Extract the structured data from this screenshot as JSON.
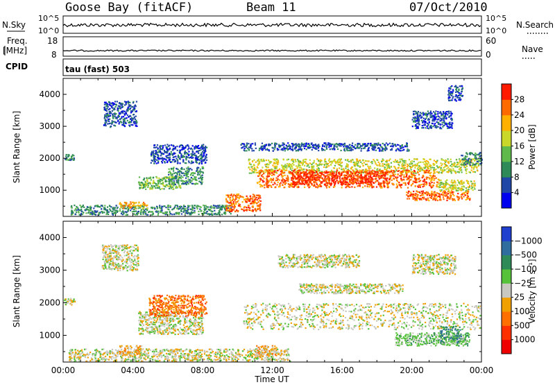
{
  "header": {
    "station": "Goose Bay (fitACF)",
    "beam": "Beam 11",
    "date": "07/Oct/2010"
  },
  "panels": {
    "nsky_label": "N.Sky",
    "nsky_ticks": [
      "10^5",
      "10^0"
    ],
    "nsearch_label": "N.Search",
    "freq_label_line1": "Freq.",
    "freq_label_line2": "[MHz]",
    "freq_ticks": [
      "18",
      "8"
    ],
    "nave_label": "Nave",
    "nave_ticks": [
      "60",
      "0"
    ],
    "cpid_label": "CPID",
    "cpid_value": "tau (fast) 503"
  },
  "chart_data": [
    {
      "type": "heatmap",
      "name": "power",
      "ylabel": "Slant Range [km]",
      "yticks": [
        1000,
        2000,
        3000,
        4000
      ],
      "ylim": [
        180,
        4500
      ],
      "xlim": [
        0,
        24
      ],
      "colorbar": {
        "label": "Power [dB]",
        "tick_labels": [
          "4",
          "8",
          "12",
          "16",
          "20",
          "24",
          "28"
        ],
        "colors": [
          "#0000ee",
          "#2147a6",
          "#2e8b57",
          "#5fb94b",
          "#c9d62a",
          "#ffb000",
          "#ff6a00",
          "#ff1a00"
        ]
      },
      "regions": [
        {
          "t0": 0.0,
          "t1": 0.6,
          "r0": 1950,
          "r1": 2150,
          "level": 2
        },
        {
          "t0": 2.3,
          "t1": 4.2,
          "r0": 3000,
          "r1": 3800,
          "level": 1
        },
        {
          "t0": 4.3,
          "t1": 6.7,
          "r0": 1050,
          "r1": 1450,
          "level": 3
        },
        {
          "t0": 6.0,
          "t1": 8.0,
          "r0": 1200,
          "r1": 1750,
          "level": 2
        },
        {
          "t0": 5.0,
          "t1": 8.2,
          "r0": 1850,
          "r1": 2450,
          "level": 1
        },
        {
          "t0": 0.4,
          "t1": 9.6,
          "r0": 250,
          "r1": 550,
          "level": 2
        },
        {
          "t0": 3.2,
          "t1": 4.8,
          "r0": 450,
          "r1": 650,
          "level": 5
        },
        {
          "t0": 9.3,
          "t1": 11.3,
          "r0": 350,
          "r1": 900,
          "level": 6
        },
        {
          "t0": 10.1,
          "t1": 19.8,
          "r0": 2250,
          "r1": 2500,
          "level": 1
        },
        {
          "t0": 10.6,
          "t1": 23.8,
          "r0": 1550,
          "r1": 2000,
          "level": 4
        },
        {
          "t0": 11.1,
          "t1": 21.5,
          "r0": 1100,
          "r1": 1650,
          "level": 6
        },
        {
          "t0": 13.0,
          "t1": 18.5,
          "r0": 1200,
          "r1": 1600,
          "level": 7
        },
        {
          "t0": 19.6,
          "t1": 23.3,
          "r0": 700,
          "r1": 1000,
          "level": 6
        },
        {
          "t0": 21.5,
          "t1": 23.6,
          "r0": 1000,
          "r1": 1350,
          "level": 4
        },
        {
          "t0": 20.0,
          "t1": 22.3,
          "r0": 2950,
          "r1": 3500,
          "level": 1
        },
        {
          "t0": 22.0,
          "t1": 22.9,
          "r0": 3800,
          "r1": 4300,
          "level": 1
        },
        {
          "t0": 22.8,
          "t1": 24.0,
          "r0": 1800,
          "r1": 2200,
          "level": 2
        }
      ]
    },
    {
      "type": "heatmap",
      "name": "velocity",
      "ylabel": "Slant Range [km]",
      "xlabel": "Time UT",
      "xticks": [
        "00:00",
        "04:00",
        "08:00",
        "12:00",
        "16:00",
        "20:00",
        "00:00"
      ],
      "yticks": [
        1000,
        2000,
        3000,
        4000
      ],
      "ylim": [
        180,
        4500
      ],
      "xlim": [
        0,
        24
      ],
      "colorbar": {
        "label": "Velocity [m s⁻¹]",
        "tick_labels": [
          "1000",
          "500",
          "100",
          "25",
          "−25",
          "−100",
          "−500",
          "−1000"
        ],
        "colors": [
          "#1f3fcf",
          "#2f6d9f",
          "#2e8b57",
          "#55c23a",
          "#c8c8c0",
          "#f0a000",
          "#ff7000",
          "#ff3000",
          "#ee0000"
        ]
      },
      "regions": [
        {
          "t0": 0.0,
          "t1": 0.7,
          "r0": 1950,
          "r1": 2150,
          "level": 4
        },
        {
          "t0": 2.2,
          "t1": 4.3,
          "r0": 3000,
          "r1": 3800,
          "level": 4
        },
        {
          "t0": 4.3,
          "t1": 8.0,
          "r0": 1050,
          "r1": 1750,
          "level": 4
        },
        {
          "t0": 4.9,
          "t1": 8.2,
          "r0": 1600,
          "r1": 2250,
          "level": 6
        },
        {
          "t0": 0.3,
          "t1": 13.0,
          "r0": 220,
          "r1": 600,
          "level": 4
        },
        {
          "t0": 3.2,
          "t1": 4.5,
          "r0": 400,
          "r1": 700,
          "level": 5
        },
        {
          "t0": 11.0,
          "t1": 12.2,
          "r0": 350,
          "r1": 700,
          "level": 5
        },
        {
          "t0": 10.3,
          "t1": 23.9,
          "r0": 1200,
          "r1": 2000,
          "level": 4
        },
        {
          "t0": 13.5,
          "t1": 19.5,
          "r0": 2300,
          "r1": 2600,
          "level": 4
        },
        {
          "t0": 19.0,
          "t1": 23.3,
          "r0": 700,
          "r1": 1100,
          "level": 3
        },
        {
          "t0": 21.6,
          "t1": 22.8,
          "r0": 800,
          "r1": 1300,
          "level": 2
        },
        {
          "t0": 20.0,
          "t1": 22.5,
          "r0": 2900,
          "r1": 3500,
          "level": 4
        },
        {
          "t0": 12.3,
          "t1": 17.0,
          "r0": 3100,
          "r1": 3500,
          "level": 4
        }
      ]
    }
  ]
}
